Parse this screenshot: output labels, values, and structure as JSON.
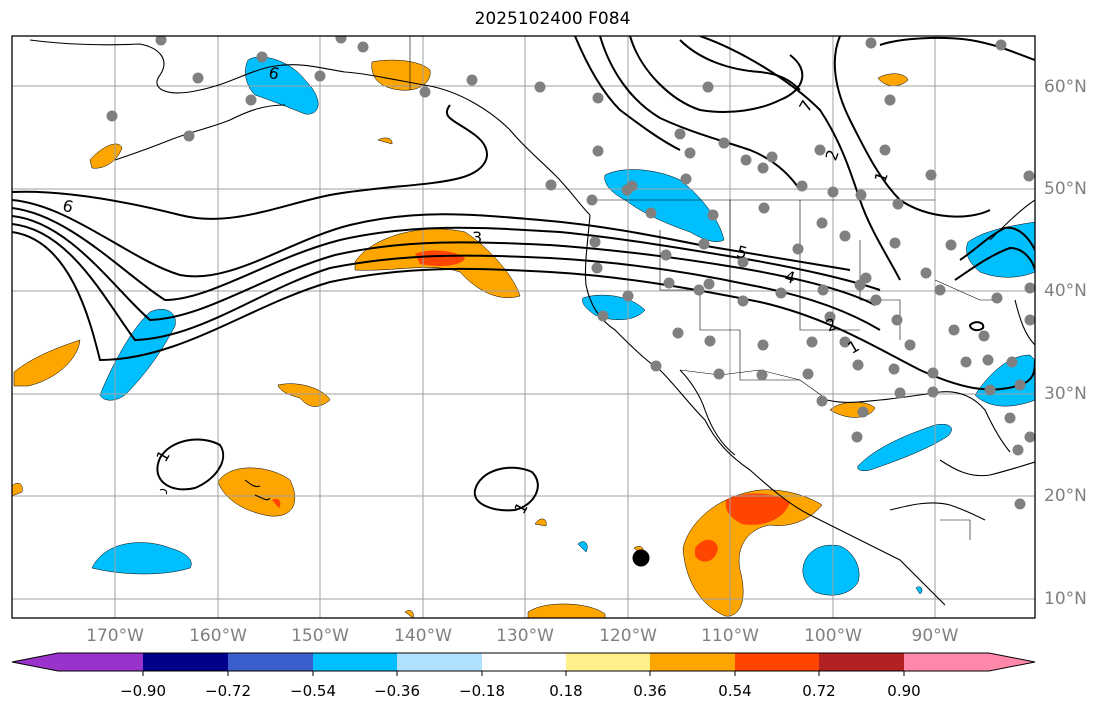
{
  "title": "2025102400 F084",
  "map": {
    "lat_labels": [
      "60°N",
      "50°N",
      "40°N",
      "30°N",
      "20°N",
      "10°N"
    ],
    "lon_labels": [
      "170°W",
      "160°W",
      "150°W",
      "140°W",
      "130°W",
      "120°W",
      "110°W",
      "100°W",
      "90°W"
    ],
    "contour_labels": [
      "6",
      "6",
      "3",
      "5",
      "4",
      "1",
      "1",
      "1",
      "1",
      "2",
      "2",
      "7"
    ],
    "colors": {
      "land_outline": "#000000",
      "grid": "#a0a0a0",
      "station_dots": "#808080",
      "positive_shade": "#ffa500",
      "strong_positive_shade": "#ff4500",
      "negative_shade": "#00bfff"
    }
  },
  "colorbar": {
    "ticks": [
      "−0.90",
      "−0.72",
      "−0.54",
      "−0.36",
      "−0.18",
      "0.18",
      "0.36",
      "0.54",
      "0.72",
      "0.90"
    ],
    "colors": [
      "#9933cc",
      "#00008b",
      "#3a5fcd",
      "#00bfff",
      "#b0e2ff",
      "#ffffff",
      "#fff08c",
      "#ffa500",
      "#ff4500",
      "#b22222",
      "#ff88aa"
    ]
  }
}
